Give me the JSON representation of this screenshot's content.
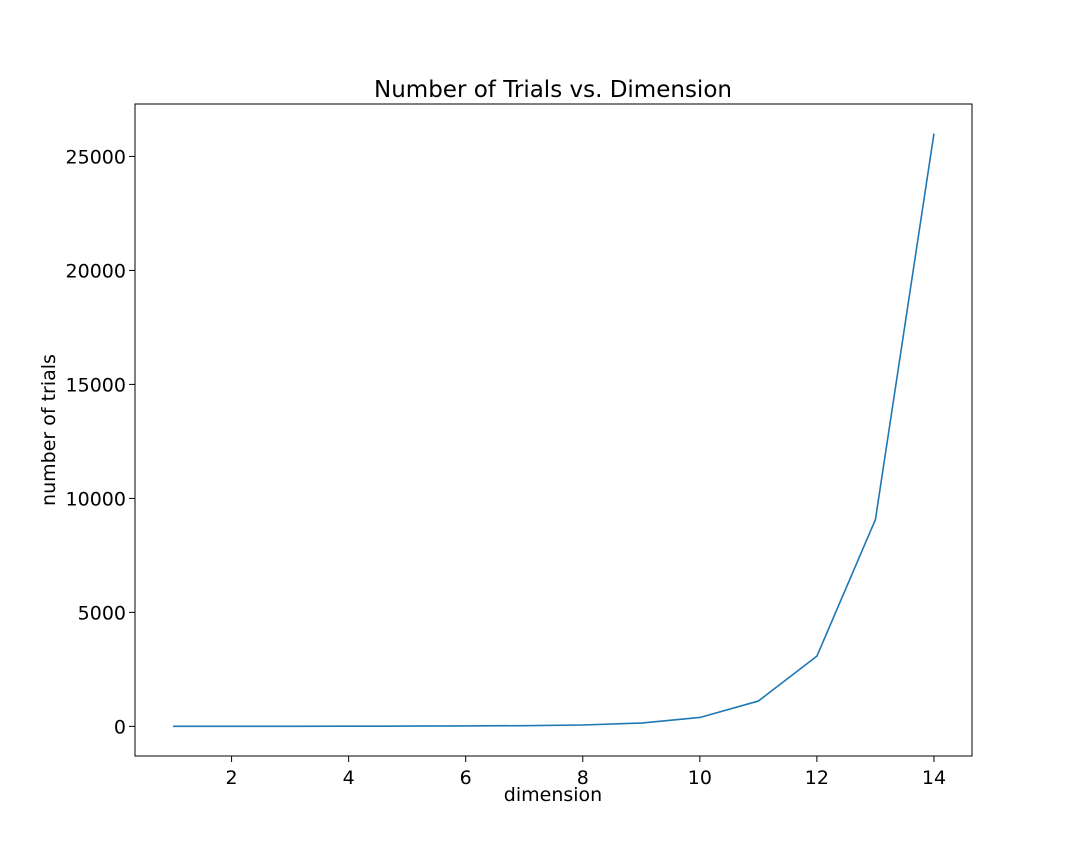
{
  "chart_data": {
    "type": "line",
    "title": "Number of Trials vs. Dimension",
    "xlabel": "dimension",
    "ylabel": "number of trials",
    "xlim": [
      0.35,
      14.65
    ],
    "ylim": [
      -1300,
      27300
    ],
    "xticks": [
      2,
      4,
      6,
      8,
      10,
      12,
      14
    ],
    "yticks": [
      0,
      5000,
      10000,
      15000,
      20000,
      25000
    ],
    "grid": false,
    "series": [
      {
        "color": "#1f77b4",
        "x": [
          1,
          2,
          3,
          4,
          5,
          6,
          7,
          8,
          9,
          10,
          11,
          12,
          13,
          14
        ],
        "y": [
          1,
          2,
          4,
          6,
          11,
          18,
          31,
          60,
          145,
          390,
          1110,
          3080,
          9070,
          26000
        ]
      }
    ]
  }
}
